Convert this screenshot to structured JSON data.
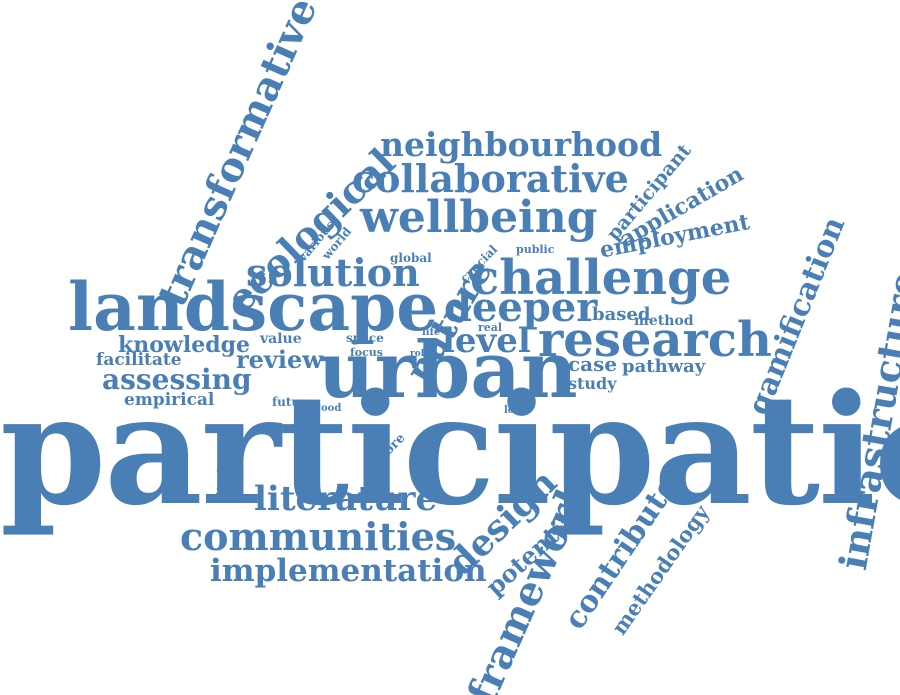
{
  "cloud": {
    "color": "#4a7fb5",
    "words": {
      "participation": "participation",
      "urban": "urban",
      "landscape": "landscape",
      "challenge": "challenge",
      "research": "research",
      "wellbeing": "wellbeing",
      "deeper": "deeper",
      "solution": "solution",
      "collaborative": "collaborative",
      "neighbourhood": "neighbourhood",
      "ecological": "ecological",
      "transformative": "transformative",
      "nature": "nature",
      "level": "level",
      "literature": "literature",
      "communities": "communities",
      "implementation": "implementation",
      "design": "design",
      "framework": "framework",
      "contribute": "contribute",
      "methodology": "methodology",
      "potential": "potential",
      "gamification": "gamification",
      "infrastructure": "infrastructure",
      "employment": "employment",
      "application": "application",
      "participant": "participant",
      "knowledge": "knowledge",
      "assessing": "assessing",
      "facilitate": "facilitate",
      "empirical": "empirical",
      "review": "review",
      "value": "value",
      "space": "space",
      "focus": "focus",
      "life": "life",
      "role": "role",
      "real": "real",
      "case": "case",
      "study": "study",
      "pathway": "pathway",
      "based": "based",
      "method": "method",
      "global": "global",
      "crucial": "crucial",
      "public": "public",
      "various": "various",
      "world": "world",
      "future": "future",
      "good": "good",
      "local": "local",
      "more": "more",
      "analysis": "analysis"
    }
  }
}
